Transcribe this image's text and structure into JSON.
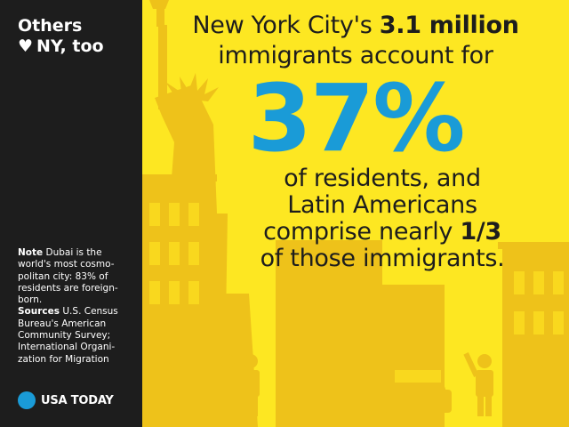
{
  "sidebar": {
    "title_line1": "Others",
    "heart": "♥",
    "title_line2": "NY, too",
    "note_label": "Note",
    "note_text": "Dubai is the world's most cosmo-politan city: 83% of residents are foreign-born.",
    "sources_label": "Sources",
    "sources_text": "U.S. Census Bureau's American Community Survey; International Organi-zation for Migration",
    "logo_text": "USA TODAY"
  },
  "main": {
    "line1_pre": "New York City's ",
    "line1_bold": "3.1 million",
    "line2": "immigrants account for",
    "big_number": "37%",
    "line3": "of residents, and",
    "line4": "Latin Americans",
    "line5_pre": "comprise nearly ",
    "line5_bold": "1/3",
    "line6": "of those immigrants."
  },
  "colors": {
    "background": "#fde722",
    "sidebar": "#1d1d1d",
    "accent": "#1a9bd7",
    "silhouette": "#eec21a"
  }
}
